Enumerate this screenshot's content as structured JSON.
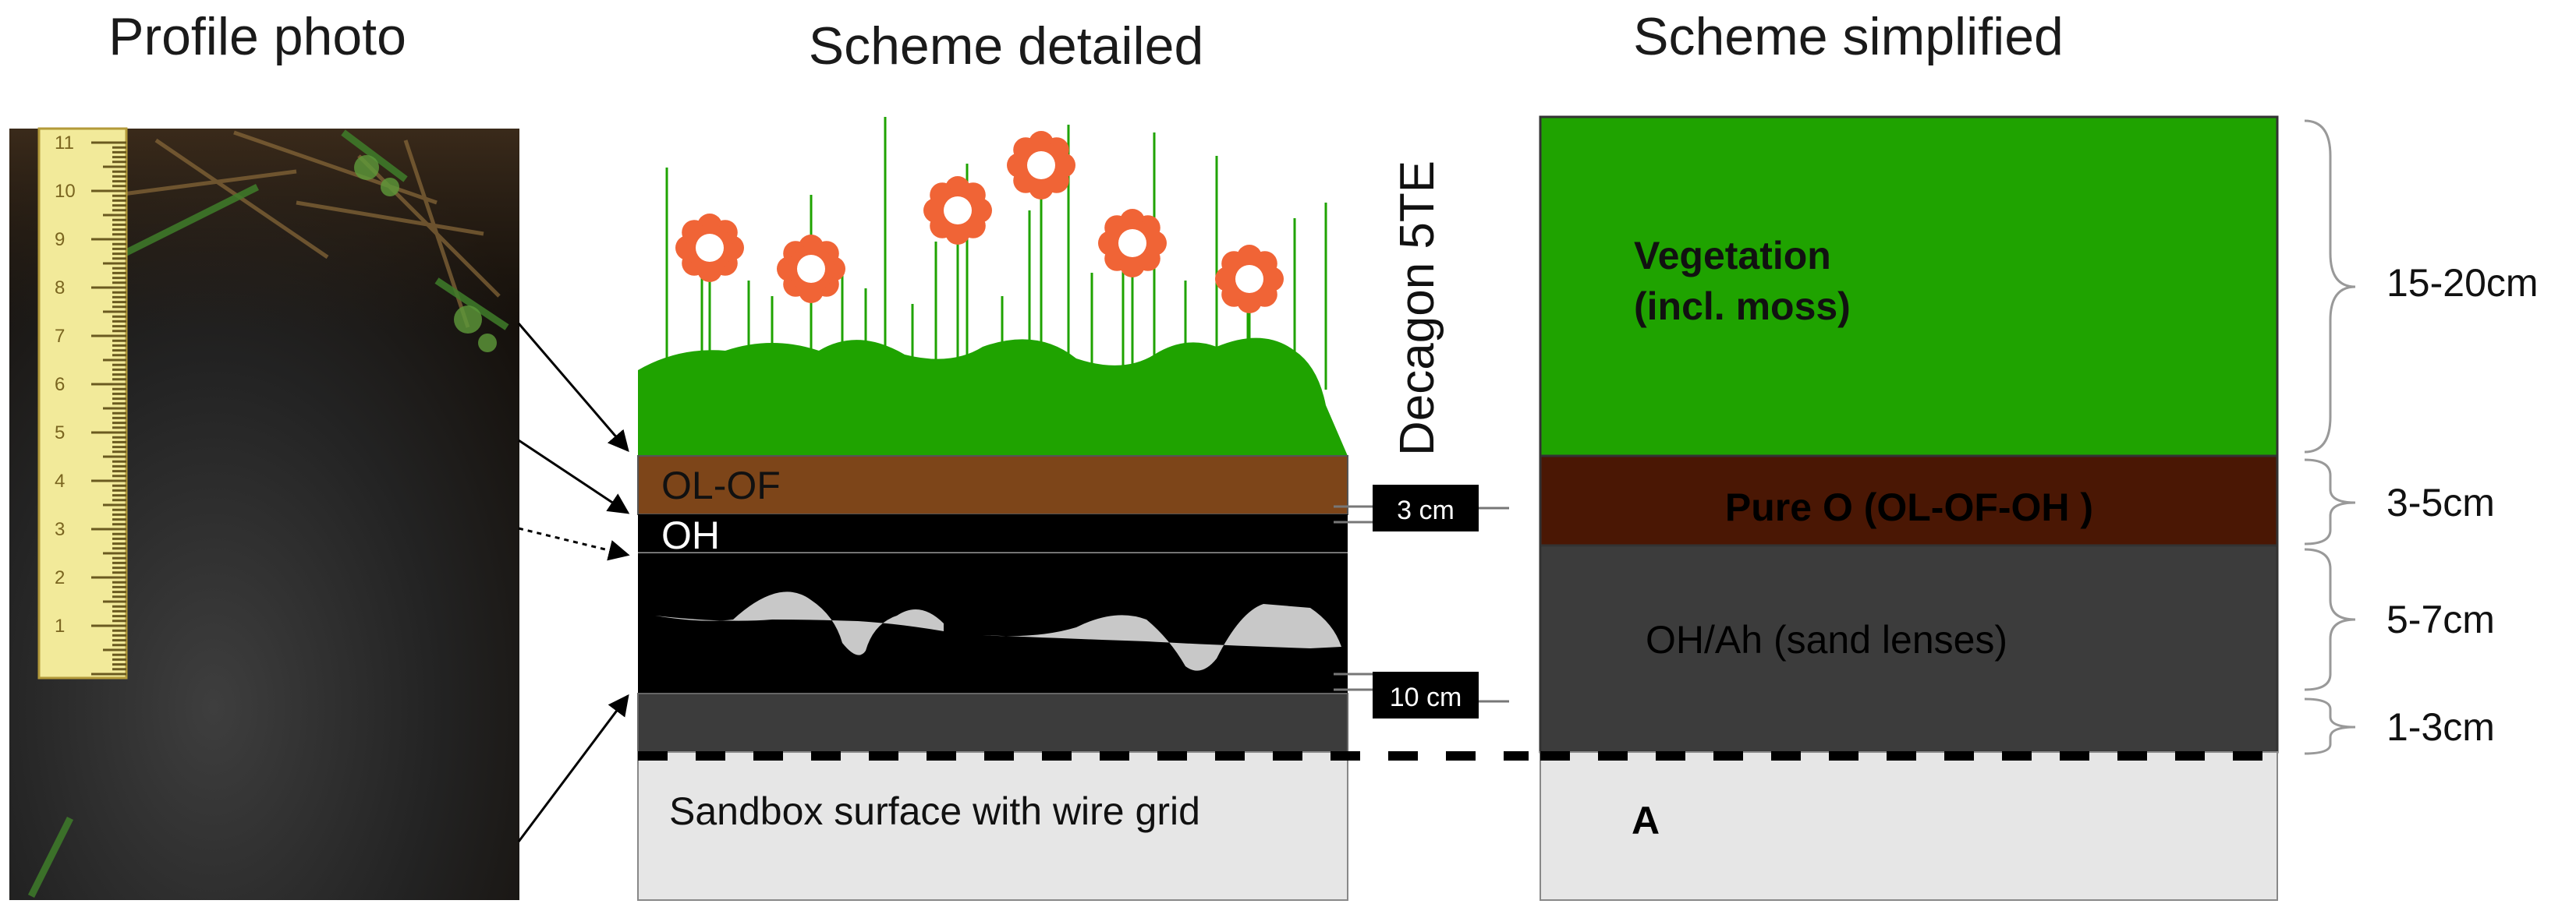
{
  "headers": {
    "photo": "Profile photo",
    "detailed": "Scheme detailed",
    "simplified": "Scheme simplified"
  },
  "detailed": {
    "sensor_label": "Decagon 5TE",
    "layer_olof": "OL-OF",
    "layer_oh": "OH",
    "marker_3cm": "3 cm",
    "marker_10cm": "10 cm",
    "sandbox_label": "Sandbox surface with wire grid"
  },
  "simplified": {
    "vegetation_line1": "Vegetation",
    "vegetation_line2": "(incl. moss)",
    "pure_o": "Pure O (OL-OF-OH )",
    "oh_ah": "OH/Ah (sand lenses)",
    "a": "A",
    "brace_vegetation": "15-20cm",
    "brace_pure_o": "3-5cm",
    "brace_oh_ah": "5-7cm",
    "brace_bottom": "1-3cm"
  },
  "colors": {
    "vegetation": "#1fa300",
    "plant": "#1fa300",
    "pure_o": "#4a1704",
    "oh_ah": "#3c3c3c",
    "a_layer": "#e6e6e6",
    "olof": "#7d4519",
    "flower": "#f06436",
    "soil_dark": "#1a1a1a"
  }
}
